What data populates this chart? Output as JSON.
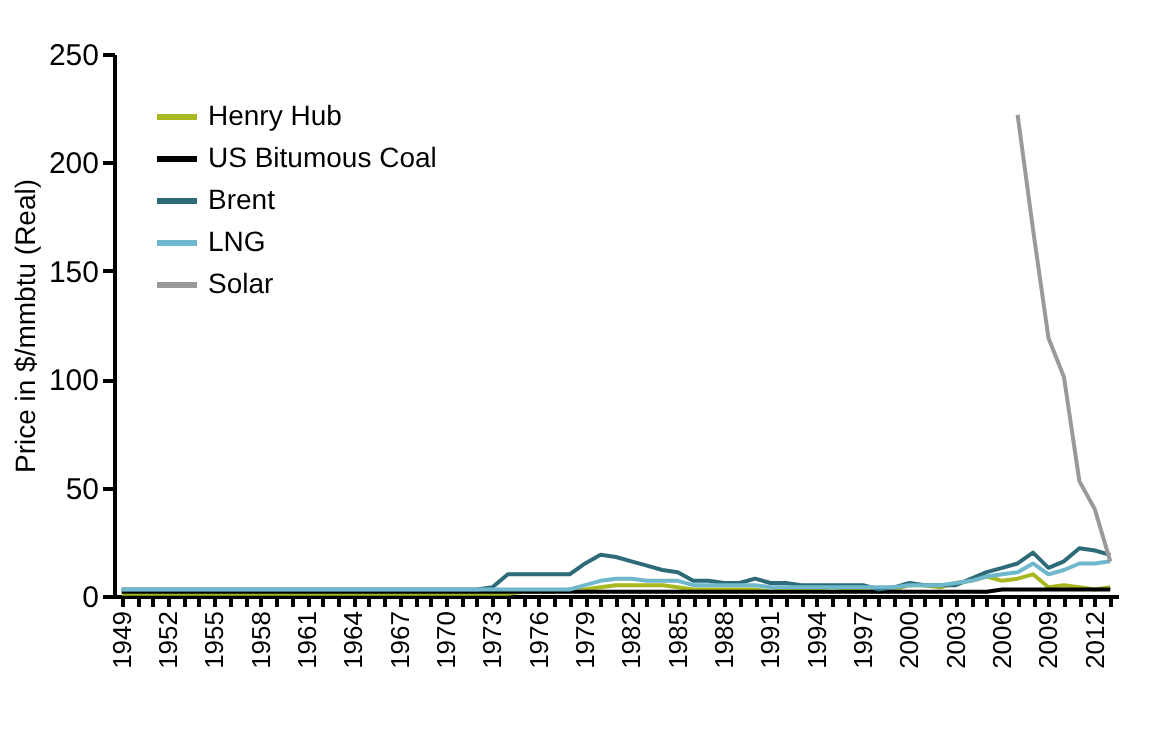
{
  "chart_data": {
    "type": "line",
    "ylabel": "Price in $/mmbtu (Real)",
    "categories": [
      "1949",
      null,
      null,
      "1952",
      null,
      null,
      "1955",
      null,
      null,
      "1958",
      null,
      null,
      "1961",
      null,
      null,
      "1964",
      null,
      null,
      "1967",
      null,
      null,
      "1970",
      null,
      null,
      "1973",
      null,
      null,
      "1976",
      null,
      null,
      "1979",
      null,
      null,
      "1982",
      null,
      null,
      "1985",
      null,
      null,
      "1988",
      null,
      null,
      "1991",
      null,
      null,
      "1994",
      null,
      null,
      "1997",
      null,
      null,
      "2000",
      null,
      null,
      "2003",
      null,
      null,
      "2006",
      null,
      null,
      "2009",
      null,
      null,
      "2012",
      null
    ],
    "series": [
      {
        "name": "Henry Hub",
        "color": "#a8b820",
        "values": [
          1,
          1,
          1,
          1,
          1,
          1,
          1,
          1,
          1,
          1,
          1,
          1,
          1,
          1,
          1,
          1,
          1,
          1,
          1,
          1,
          1,
          1,
          1,
          1,
          1,
          1,
          2,
          2,
          2,
          3,
          3,
          4,
          5,
          5,
          5,
          5,
          4,
          3,
          3,
          3,
          3,
          3,
          2,
          3,
          3,
          3,
          2,
          3,
          3,
          2,
          3,
          5,
          5,
          4,
          6,
          7,
          9,
          7,
          8,
          10,
          4,
          5,
          4,
          3,
          4
        ]
      },
      {
        "name": "US Bitumous Coal",
        "color": "#000000",
        "values": [
          2,
          2,
          2,
          2,
          2,
          2,
          2,
          2,
          2,
          2,
          2,
          2,
          2,
          2,
          2,
          2,
          2,
          2,
          2,
          2,
          2,
          2,
          2,
          2,
          2,
          2,
          2,
          2,
          2,
          2,
          2,
          2,
          2,
          2,
          2,
          2,
          2,
          2,
          2,
          2,
          2,
          2,
          2,
          2,
          2,
          2,
          2,
          2,
          2,
          2,
          2,
          2,
          2,
          2,
          2,
          2,
          2,
          3,
          3,
          3,
          3,
          3,
          3,
          3,
          3
        ]
      },
      {
        "name": "Brent",
        "color": "#2e6b78",
        "values": [
          3,
          3,
          3,
          3,
          3,
          3,
          3,
          3,
          3,
          3,
          3,
          3,
          3,
          3,
          3,
          3,
          3,
          3,
          3,
          3,
          3,
          3,
          3,
          3,
          4,
          10,
          10,
          10,
          10,
          10,
          15,
          19,
          18,
          16,
          14,
          12,
          11,
          7,
          7,
          6,
          6,
          8,
          6,
          6,
          5,
          5,
          5,
          5,
          5,
          3,
          4,
          6,
          5,
          5,
          5,
          8,
          11,
          13,
          15,
          20,
          13,
          16,
          22,
          21,
          19
        ]
      },
      {
        "name": "LNG",
        "color": "#6fb7cc",
        "values": [
          3,
          3,
          3,
          3,
          3,
          3,
          3,
          3,
          3,
          3,
          3,
          3,
          3,
          3,
          3,
          3,
          3,
          3,
          3,
          3,
          3,
          3,
          3,
          3,
          3,
          3,
          3,
          3,
          3,
          3,
          5,
          7,
          8,
          8,
          7,
          7,
          7,
          5,
          5,
          5,
          5,
          5,
          4,
          4,
          4,
          4,
          4,
          4,
          4,
          4,
          4,
          5,
          5,
          5,
          6,
          7,
          9,
          10,
          11,
          15,
          10,
          12,
          15,
          15,
          16
        ]
      },
      {
        "name": "Solar",
        "color": "#999999",
        "values": [
          null,
          null,
          null,
          null,
          null,
          null,
          null,
          null,
          null,
          null,
          null,
          null,
          null,
          null,
          null,
          null,
          null,
          null,
          null,
          null,
          null,
          null,
          null,
          null,
          null,
          null,
          null,
          null,
          null,
          null,
          null,
          null,
          null,
          null,
          null,
          null,
          null,
          null,
          null,
          null,
          null,
          null,
          null,
          null,
          null,
          null,
          null,
          null,
          null,
          null,
          null,
          null,
          null,
          null,
          null,
          null,
          null,
          null,
          222,
          169,
          119,
          101,
          53,
          40,
          16
        ]
      }
    ],
    "ylim": [
      0,
      250
    ],
    "yticks": [
      0,
      50,
      100,
      150,
      200,
      250
    ],
    "grid": false,
    "legend": "top left",
    "line_style": "solid",
    "marker": "none"
  }
}
